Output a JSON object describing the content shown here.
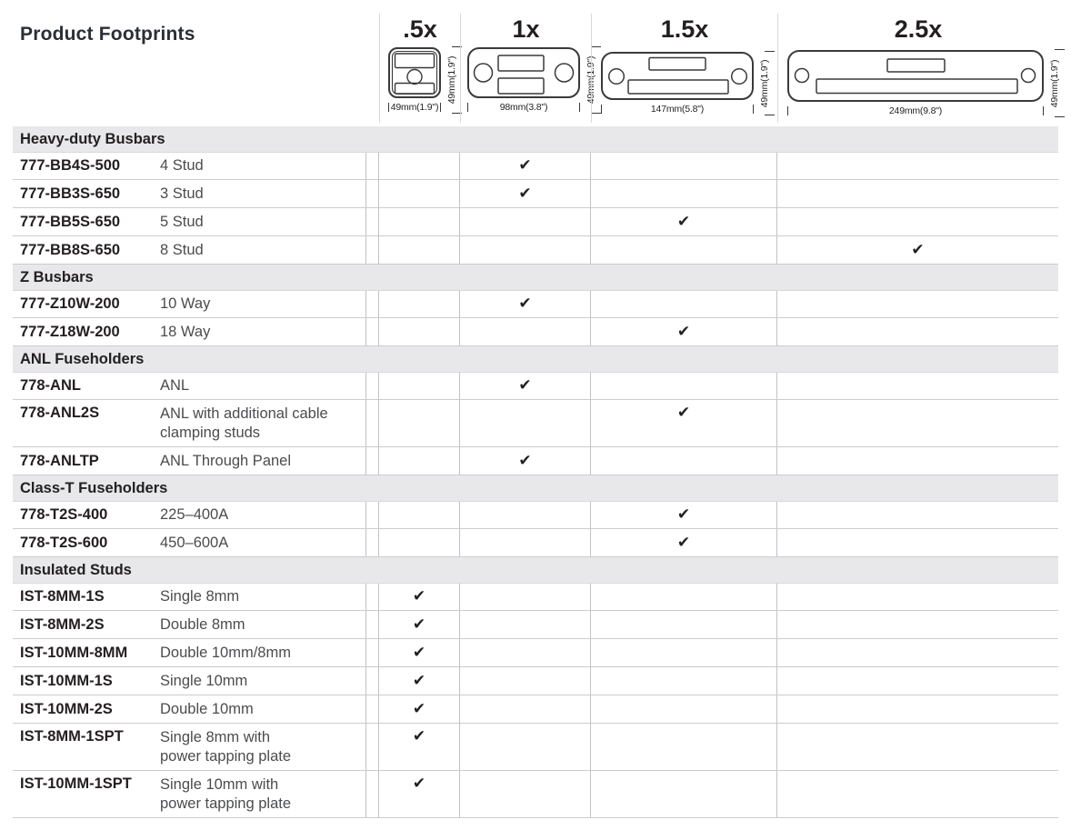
{
  "title": "Product Footprints",
  "colors": {
    "section_band_bg": "#e8e8ea",
    "row_border": "#cbccce",
    "column_border": "#c1c2c4",
    "code_text": "#231f20",
    "desc_text": "#4b4c4e"
  },
  "check_glyph": "✔",
  "columns": [
    {
      "id": "half",
      "label": ".5x",
      "width_label": "49mm(1.9\")",
      "height_label": "49mm(1.9\")"
    },
    {
      "id": "one",
      "label": "1x",
      "width_label": "98mm(3.8\")",
      "height_label": "49mm(1.9\")"
    },
    {
      "id": "onehalf",
      "label": "1.5x",
      "width_label": "147mm(5.8\")",
      "height_label": "49mm(1.9\")"
    },
    {
      "id": "twohalf",
      "label": "2.5x",
      "width_label": "249mm(9.8\")",
      "height_label": "49mm(1.9\")"
    }
  ],
  "sections": [
    {
      "label": "Heavy-duty Busbars",
      "rows": [
        {
          "code": "777-BB4S-500",
          "desc": "4 Stud",
          "check": "1x"
        },
        {
          "code": "777-BB3S-650",
          "desc": "3 Stud",
          "check": "1x"
        },
        {
          "code": "777-BB5S-650",
          "desc": "5 Stud",
          "check": "1.5x"
        },
        {
          "code": "777-BB8S-650",
          "desc": "8 Stud",
          "check": "2.5x"
        }
      ]
    },
    {
      "label": "Z Busbars",
      "rows": [
        {
          "code": "777-Z10W-200",
          "desc": "10 Way",
          "check": "1x"
        },
        {
          "code": "777-Z18W-200",
          "desc": "18 Way",
          "check": "1.5x"
        }
      ]
    },
    {
      "label": "ANL Fuseholders",
      "rows": [
        {
          "code": "778-ANL",
          "desc": "ANL",
          "check": "1x"
        },
        {
          "code": "778-ANL2S",
          "desc": "ANL with additional cable clamping studs",
          "desc_lines": [
            "ANL with additional cable",
            "clamping studs"
          ],
          "check": "1.5x"
        },
        {
          "code": "778-ANLTP",
          "desc": "ANL Through Panel",
          "check": "1x"
        }
      ]
    },
    {
      "label": "Class-T Fuseholders",
      "rows": [
        {
          "code": "778-T2S-400",
          "desc": "225–400A",
          "check": "1.5x"
        },
        {
          "code": "778-T2S-600",
          "desc": "450–600A",
          "check": "1.5x"
        }
      ]
    },
    {
      "label": "Insulated Studs",
      "rows": [
        {
          "code": "IST-8MM-1S",
          "desc": "Single 8mm",
          "check": ".5x"
        },
        {
          "code": "IST-8MM-2S",
          "desc": "Double 8mm",
          "check": ".5x"
        },
        {
          "code": "IST-10MM-8MM",
          "desc": "Double 10mm/8mm",
          "check": ".5x"
        },
        {
          "code": "IST-10MM-1S",
          "desc": "Single 10mm",
          "check": ".5x"
        },
        {
          "code": "IST-10MM-2S",
          "desc": "Double 10mm",
          "check": ".5x"
        },
        {
          "code": "IST-8MM-1SPT",
          "desc": "Single 8mm with power tapping plate",
          "desc_lines": [
            "Single 8mm with",
            "power tapping plate"
          ],
          "check": ".5x"
        },
        {
          "code": "IST-10MM-1SPT",
          "desc": "Single 10mm with power tapping plate",
          "desc_lines": [
            "Single 10mm with",
            "power tapping plate"
          ],
          "check": ".5x"
        }
      ]
    }
  ]
}
